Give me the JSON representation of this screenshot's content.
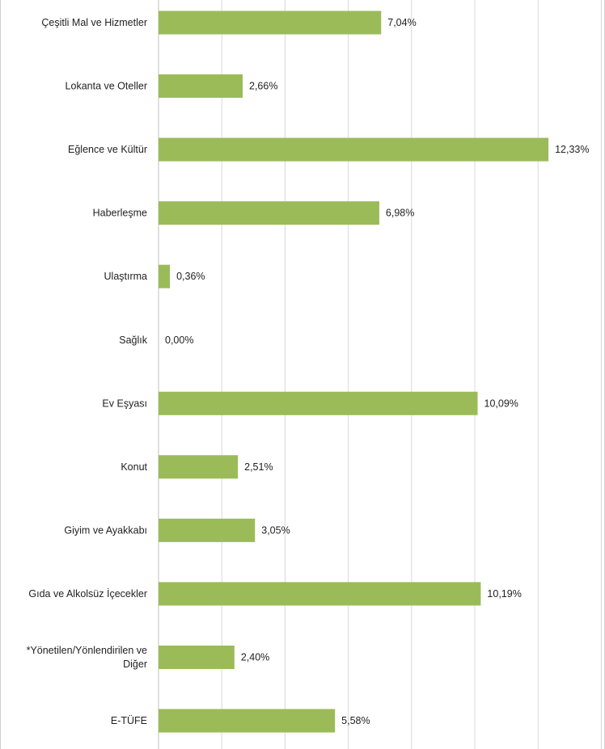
{
  "chart_data": {
    "type": "bar",
    "orientation": "horizontal",
    "categories": [
      "Çeşitli Mal ve Hizmetler",
      "Lokanta ve Oteller",
      "Eğlence ve Kültür",
      "Haberleşme",
      "Ulaştırma",
      "Sağlık",
      "Ev Eşyası",
      "Konut",
      "Giyim ve Ayakkabı",
      "Gıda ve Alkolsüz İçecekler",
      "*Yönetilen/Yönlendirilen ve Diğer",
      "E-TÜFE"
    ],
    "category_label_lines": [
      [
        "Çeşitli Mal ve Hizmetler"
      ],
      [
        "Lokanta ve Oteller"
      ],
      [
        "Eğlence ve Kültür"
      ],
      [
        "Haberleşme"
      ],
      [
        "Ulaştırma"
      ],
      [
        "Sağlık"
      ],
      [
        "Ev Eşyası"
      ],
      [
        "Konut"
      ],
      [
        "Giyim ve Ayakkabı"
      ],
      [
        "Gıda ve Alkolsüz İçecekler"
      ],
      [
        "*Yönetilen/Yönlendirilen ve",
        "Diğer"
      ],
      [
        "E-TÜFE"
      ]
    ],
    "values": [
      7.04,
      2.66,
      12.33,
      6.98,
      0.36,
      0.0,
      10.09,
      2.51,
      3.05,
      10.19,
      2.4,
      5.58
    ],
    "data_labels": [
      "7,04%",
      "2,66%",
      "12,33%",
      "6,98%",
      "0,36%",
      "0,00%",
      "10,09%",
      "2,51%",
      "3,05%",
      "10,19%",
      "2,40%",
      "5,58%"
    ],
    "xlim": [
      0,
      14
    ],
    "x_gridlines": [
      0,
      2,
      4,
      6,
      8,
      10,
      12,
      14
    ],
    "grid": true,
    "bar_color": "#9bbb59",
    "grid_color": "#d9d9d9"
  }
}
